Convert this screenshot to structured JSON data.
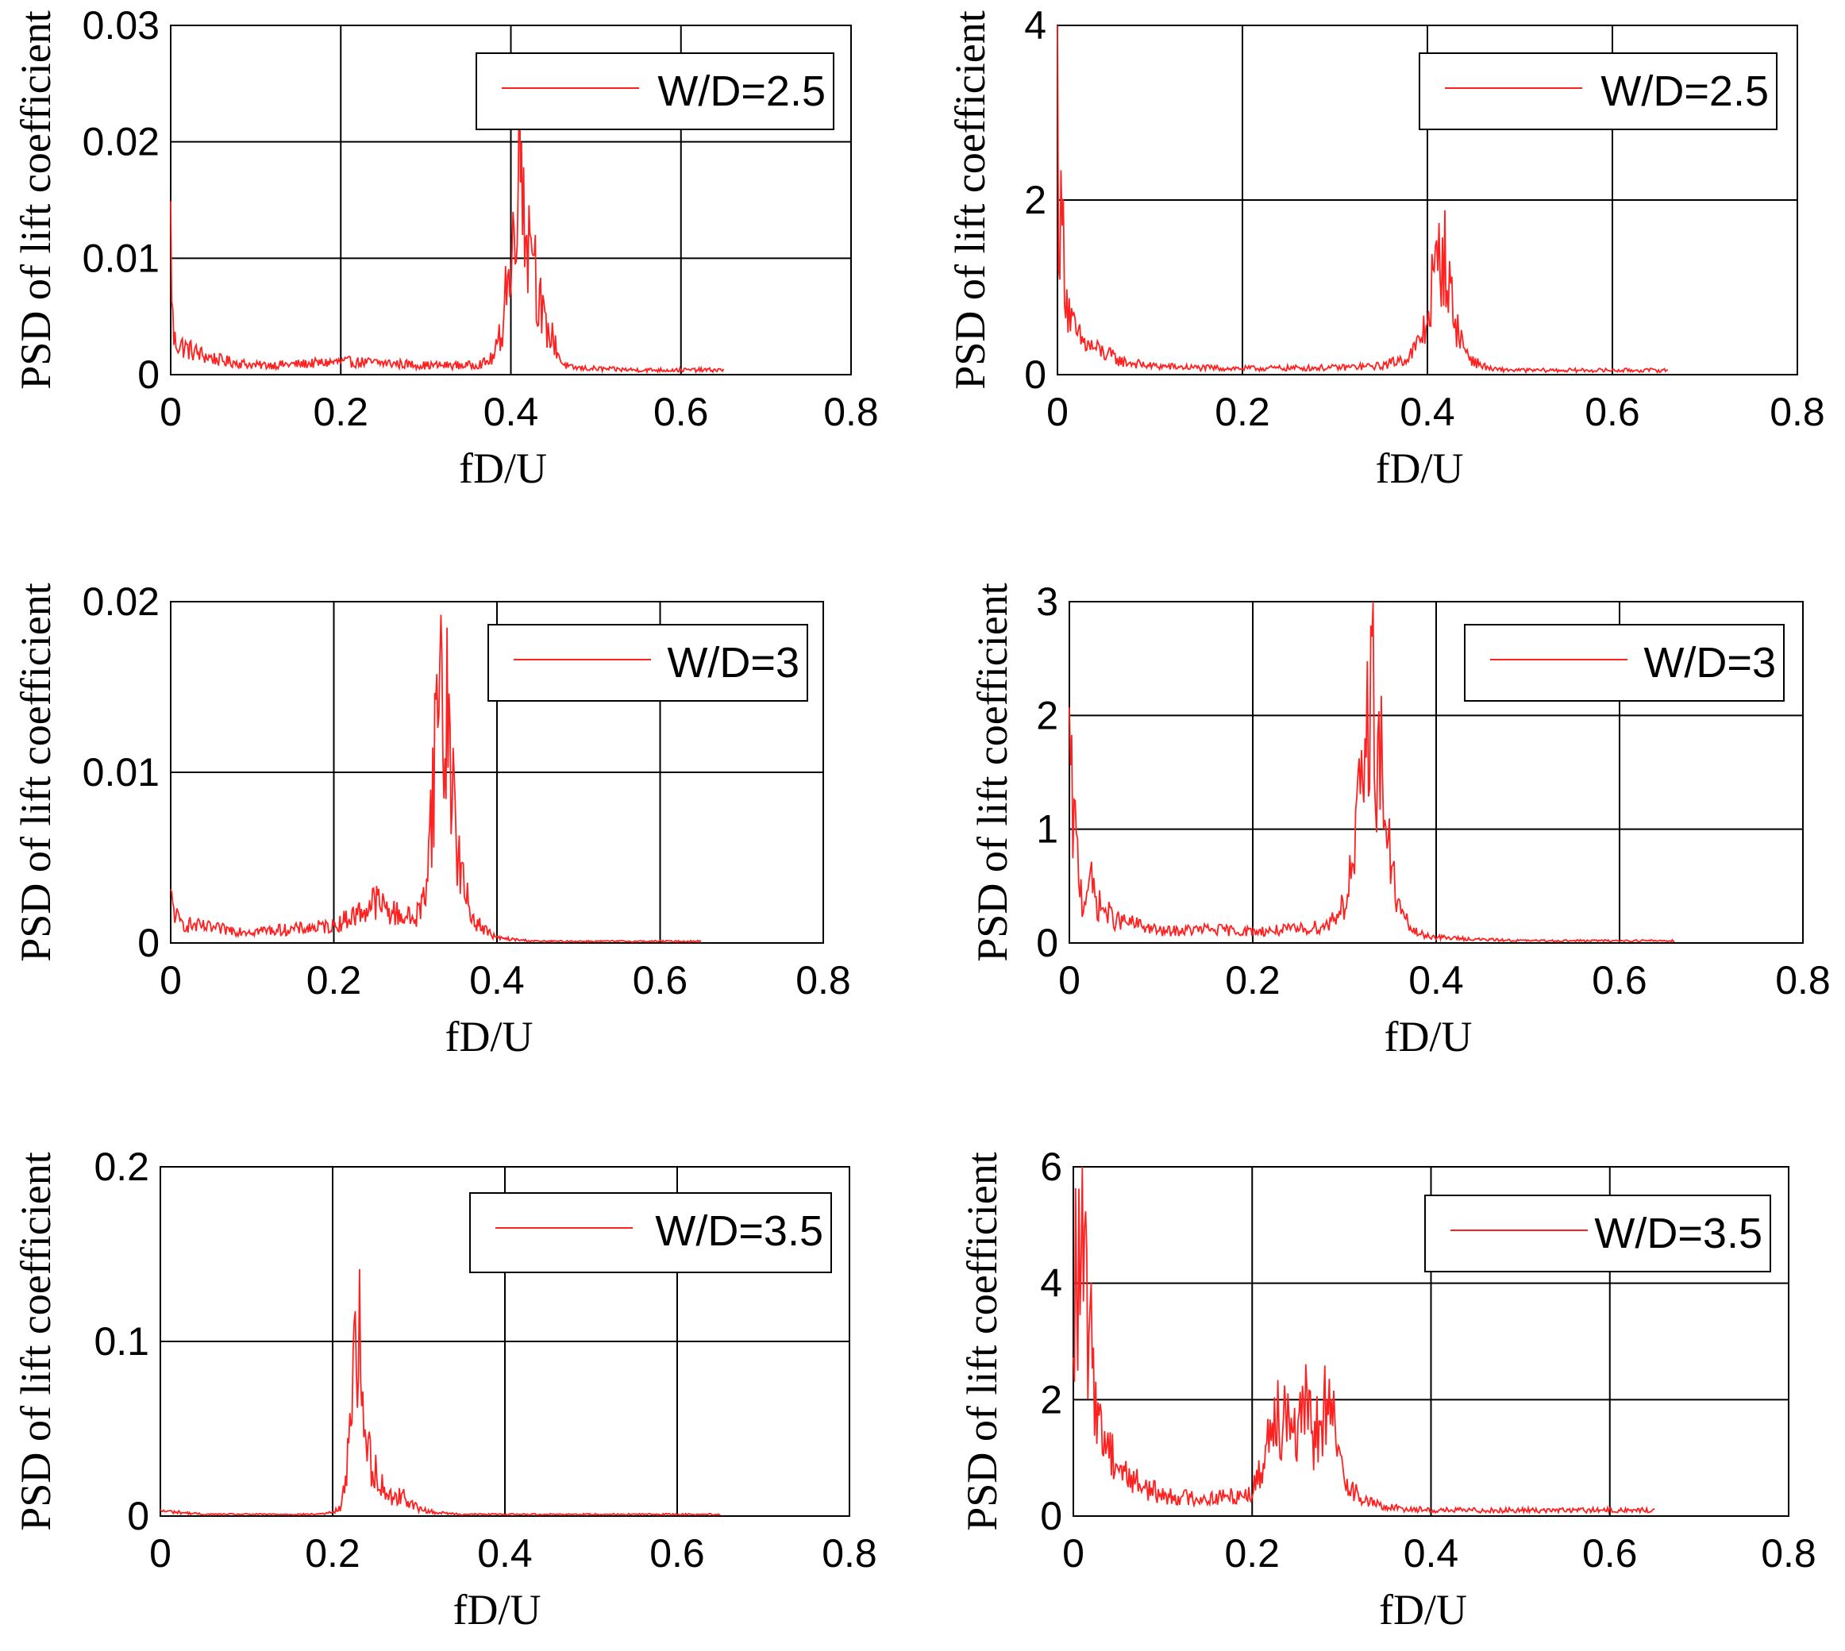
{
  "colors": {
    "series": "#ff2020",
    "axis": "#000000",
    "grid_major": "#000000",
    "grid_minor": "#bdbdbd",
    "background": "#ffffff"
  },
  "chart_data": [
    {
      "type": "line",
      "panel": "top-left",
      "xlabel": "fD/U",
      "ylabel": "PSD of lift coefficient",
      "xlim": [
        0,
        0.8
      ],
      "ylim": [
        0,
        0.03
      ],
      "xticks": [
        "0",
        "0.2",
        "0.4",
        "0.6",
        "0.8"
      ],
      "yticks": [
        "0",
        "0.01",
        "0.02",
        "0.03"
      ],
      "xtick_values": [
        0,
        0.2,
        0.4,
        0.6,
        0.8
      ],
      "ytick_values": [
        0,
        0.01,
        0.02,
        0.03
      ],
      "grid": "on",
      "legend": "W/D=2.5",
      "legend_position": "top-right",
      "x_end": 0.65,
      "baseline": 0.0004,
      "series": [
        {
          "name": "W/D=2.5",
          "x": [
            0,
            0.003,
            0.01,
            0.02,
            0.04,
            0.06,
            0.1,
            0.15,
            0.2,
            0.25,
            0.3,
            0.35,
            0.37,
            0.38,
            0.39,
            0.395,
            0.4,
            0.405,
            0.41,
            0.415,
            0.42,
            0.425,
            0.43,
            0.44,
            0.45,
            0.46,
            0.47,
            0.5,
            0.55,
            0.6,
            0.65
          ],
          "y": [
            0.0125,
            0.003,
            0.0026,
            0.0022,
            0.0016,
            0.0012,
            0.0008,
            0.0009,
            0.0011,
            0.001,
            0.0008,
            0.0008,
            0.001,
            0.0015,
            0.004,
            0.009,
            0.007,
            0.016,
            0.02,
            0.017,
            0.011,
            0.014,
            0.008,
            0.004,
            0.003,
            0.001,
            0.0006,
            0.0005,
            0.0004,
            0.0004,
            0.0004
          ]
        }
      ]
    },
    {
      "type": "line",
      "panel": "top-right",
      "xlabel": "fD/U",
      "ylabel": "PSD of lift coefficient",
      "xlim": [
        0,
        0.8
      ],
      "ylim": [
        0,
        4
      ],
      "xticks": [
        "0",
        "0.2",
        "0.4",
        "0.6",
        "0.8"
      ],
      "yticks": [
        "0",
        "2",
        "4"
      ],
      "xtick_values": [
        0,
        0.2,
        0.4,
        0.6,
        0.8
      ],
      "ytick_values": [
        0,
        2,
        4
      ],
      "grid": "on",
      "legend": "W/D=2.5",
      "legend_position": "top-right",
      "x_end": 0.66,
      "baseline": 0.05,
      "series": [
        {
          "name": "W/D=2.5",
          "x": [
            0,
            0.002,
            0.005,
            0.01,
            0.015,
            0.02,
            0.03,
            0.05,
            0.07,
            0.1,
            0.15,
            0.2,
            0.3,
            0.35,
            0.38,
            0.39,
            0.4,
            0.405,
            0.41,
            0.415,
            0.42,
            0.425,
            0.43,
            0.44,
            0.45,
            0.46,
            0.47,
            0.5,
            0.55,
            0.6,
            0.66
          ],
          "y": [
            3.3,
            1.5,
            1.8,
            0.9,
            0.6,
            0.45,
            0.35,
            0.25,
            0.15,
            0.1,
            0.08,
            0.07,
            0.08,
            0.1,
            0.2,
            0.35,
            0.6,
            1.0,
            1.2,
            1.4,
            1.3,
            0.9,
            0.6,
            0.3,
            0.15,
            0.1,
            0.06,
            0.05,
            0.05,
            0.05,
            0.05
          ]
        }
      ]
    },
    {
      "type": "line",
      "panel": "middle-left",
      "xlabel": "fD/U",
      "ylabel": "PSD of lift coefficient",
      "xlim": [
        0,
        0.8
      ],
      "ylim": [
        0,
        0.02
      ],
      "xticks": [
        "0",
        "0.2",
        "0.4",
        "0.6",
        "0.8"
      ],
      "yticks": [
        "0",
        "0.01",
        "0.02"
      ],
      "xtick_values": [
        0,
        0.2,
        0.4,
        0.6,
        0.8
      ],
      "ytick_values": [
        0,
        0.01,
        0.02
      ],
      "grid": "on",
      "legend": "W/D=3",
      "legend_position": "top-right",
      "x_end": 0.65,
      "baseline": 0.0001,
      "series": [
        {
          "name": "W/D=3",
          "x": [
            0,
            0.01,
            0.03,
            0.06,
            0.1,
            0.15,
            0.2,
            0.22,
            0.24,
            0.25,
            0.27,
            0.3,
            0.31,
            0.315,
            0.32,
            0.325,
            0.33,
            0.335,
            0.34,
            0.345,
            0.35,
            0.36,
            0.37,
            0.38,
            0.39,
            0.4,
            0.42,
            0.45,
            0.5,
            0.6,
            0.65
          ],
          "y": [
            0.0025,
            0.0012,
            0.001,
            0.0008,
            0.0007,
            0.0008,
            0.001,
            0.0015,
            0.002,
            0.0025,
            0.0018,
            0.0014,
            0.0025,
            0.005,
            0.008,
            0.012,
            0.0175,
            0.011,
            0.014,
            0.01,
            0.006,
            0.003,
            0.0015,
            0.001,
            0.0006,
            0.0003,
            0.0002,
            0.0001,
            0.0001,
            0.0001,
            0.0001
          ]
        }
      ]
    },
    {
      "type": "line",
      "panel": "middle-right",
      "xlabel": "fD/U",
      "ylabel": "PSD of lift coefficient",
      "xlim": [
        0,
        0.8
      ],
      "ylim": [
        0,
        3
      ],
      "xticks": [
        "0",
        "0.2",
        "0.4",
        "0.6",
        "0.8"
      ],
      "yticks": [
        "0",
        "1",
        "2",
        "3"
      ],
      "xtick_values": [
        0,
        0.2,
        0.4,
        0.6,
        0.8
      ],
      "ytick_values": [
        0,
        1,
        2,
        3
      ],
      "grid": "on",
      "legend": "W/D=3",
      "legend_position": "top-right",
      "x_end": 0.66,
      "baseline": 0.02,
      "series": [
        {
          "name": "W/D=3",
          "x": [
            0,
            0.003,
            0.008,
            0.015,
            0.02,
            0.03,
            0.05,
            0.08,
            0.1,
            0.15,
            0.2,
            0.25,
            0.28,
            0.3,
            0.31,
            0.315,
            0.32,
            0.325,
            0.33,
            0.335,
            0.34,
            0.345,
            0.35,
            0.36,
            0.37,
            0.38,
            0.4,
            0.45,
            0.5,
            0.6,
            0.66
          ],
          "y": [
            1.6,
            1.2,
            0.8,
            0.3,
            0.6,
            0.35,
            0.2,
            0.15,
            0.1,
            0.12,
            0.1,
            0.12,
            0.15,
            0.35,
            0.7,
            1.1,
            1.3,
            2.0,
            2.5,
            1.7,
            1.6,
            1.1,
            0.7,
            0.3,
            0.15,
            0.08,
            0.05,
            0.03,
            0.02,
            0.02,
            0.02
          ]
        }
      ]
    },
    {
      "type": "line",
      "panel": "bottom-left",
      "xlabel": "fD/U",
      "ylabel": "PSD of lift coefficient",
      "xlim": [
        0,
        0.8
      ],
      "ylim": [
        0,
        0.2
      ],
      "xticks": [
        "0",
        "0.2",
        "0.4",
        "0.6",
        "0.8"
      ],
      "yticks": [
        "0",
        "0.1",
        "0.2"
      ],
      "xtick_values": [
        0,
        0.2,
        0.4,
        0.6,
        0.8
      ],
      "ytick_values": [
        0,
        0.1,
        0.2
      ],
      "grid": "on",
      "legend": "W/D=3.5",
      "legend_position": "top-right",
      "x_end": 0.65,
      "baseline": 0.001,
      "series": [
        {
          "name": "W/D=3.5",
          "x": [
            0,
            0.05,
            0.1,
            0.15,
            0.18,
            0.2,
            0.21,
            0.215,
            0.22,
            0.225,
            0.23,
            0.235,
            0.24,
            0.245,
            0.25,
            0.26,
            0.27,
            0.28,
            0.29,
            0.3,
            0.32,
            0.35,
            0.4,
            0.5,
            0.6,
            0.65
          ],
          "y": [
            0.003,
            0.001,
            0.001,
            0.001,
            0.001,
            0.002,
            0.005,
            0.02,
            0.06,
            0.09,
            0.112,
            0.06,
            0.04,
            0.03,
            0.025,
            0.015,
            0.01,
            0.012,
            0.008,
            0.004,
            0.002,
            0.001,
            0.001,
            0.001,
            0.001,
            0.001
          ]
        }
      ]
    },
    {
      "type": "line",
      "panel": "bottom-right",
      "xlabel": "fD/U",
      "ylabel": "PSD of lift coefficient",
      "xlim": [
        0,
        0.8
      ],
      "ylim": [
        0,
        6
      ],
      "xticks": [
        "0",
        "0.2",
        "0.4",
        "0.6",
        "0.8"
      ],
      "yticks": [
        "0",
        "2",
        "4",
        "6"
      ],
      "xtick_values": [
        0,
        0.2,
        0.4,
        0.6,
        0.8
      ],
      "ytick_values": [
        0,
        2,
        4,
        6
      ],
      "grid": "on",
      "legend": "W/D=3.5",
      "legend_position": "top-right",
      "x_end": 0.65,
      "baseline": 0.1,
      "series": [
        {
          "name": "W/D=3.5",
          "x": [
            0,
            0.003,
            0.006,
            0.01,
            0.015,
            0.02,
            0.025,
            0.03,
            0.04,
            0.05,
            0.06,
            0.08,
            0.1,
            0.15,
            0.18,
            0.2,
            0.21,
            0.22,
            0.225,
            0.23,
            0.24,
            0.25,
            0.26,
            0.27,
            0.28,
            0.29,
            0.3,
            0.32,
            0.35,
            0.4,
            0.5,
            0.6,
            0.65
          ],
          "y": [
            2.0,
            4.8,
            4.0,
            4.6,
            3.5,
            2.8,
            2.3,
            1.5,
            1.2,
            0.9,
            0.7,
            0.5,
            0.35,
            0.3,
            0.35,
            0.4,
            0.8,
            1.5,
            2.1,
            1.7,
            1.9,
            1.4,
            1.8,
            1.3,
            1.9,
            1.6,
            0.8,
            0.3,
            0.15,
            0.1,
            0.1,
            0.1,
            0.1
          ]
        }
      ]
    }
  ]
}
